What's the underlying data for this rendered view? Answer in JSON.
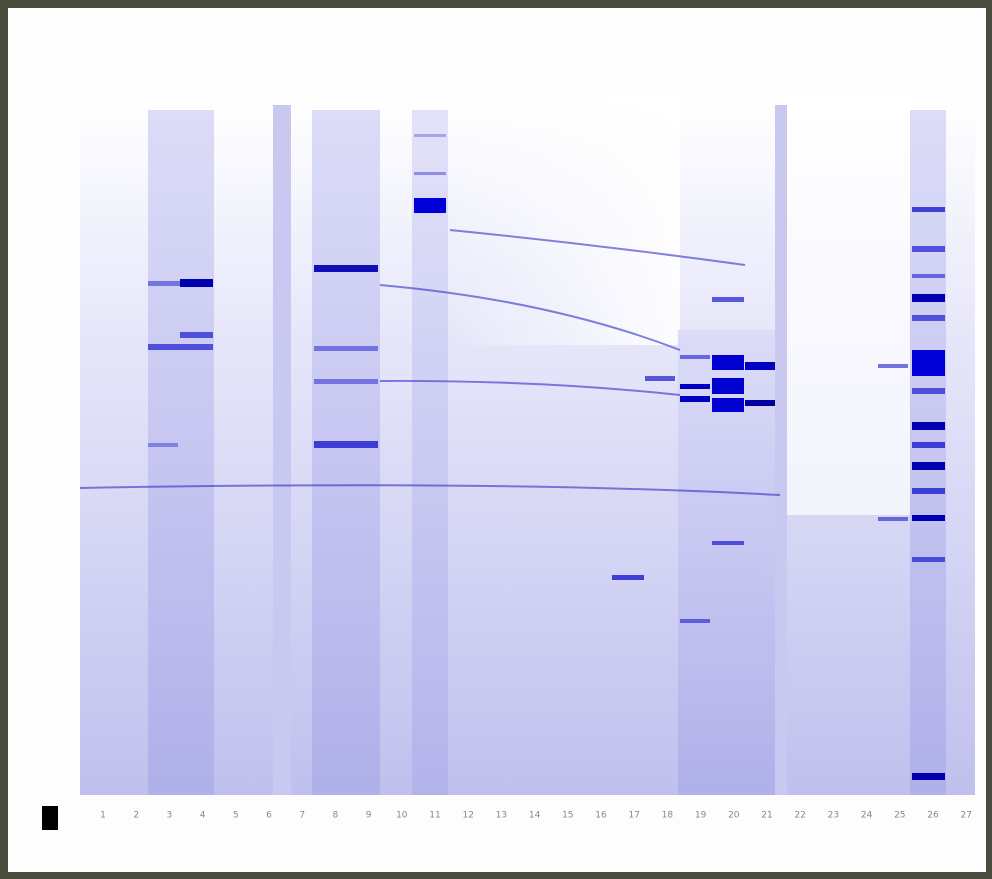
{
  "lanes": [
    "1",
    "2",
    "3",
    "4",
    "5",
    "6",
    "7",
    "8",
    "9",
    "10",
    "11",
    "12",
    "13",
    "14",
    "15",
    "16",
    "17",
    "18",
    "19",
    "20",
    "21",
    "22",
    "23",
    "24",
    "25",
    "26",
    "27"
  ]
}
